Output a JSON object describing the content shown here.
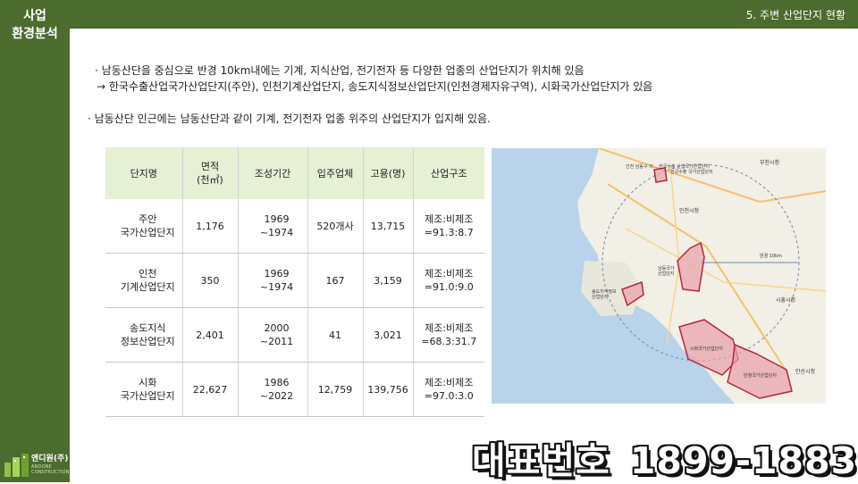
{
  "sidebar": {
    "title_line1": "사업",
    "title_line2": "환경분석"
  },
  "header": {
    "section": "5. 주변 산업단지 현황"
  },
  "bullets": {
    "line1": "· 남동산단을 중심으로 반경 10km내에는 기계, 지식산업, 전기전자 등 다양한 업종의 산업단지가 위치해 있음",
    "line2": "→ 한국수출산업국가산업단지(주안), 인천기계산업단지, 송도지식정보산업단지(인천경제자유구역), 시화국가산업단지가 있음",
    "line3": "· 남동산단 인근에는 남동산단과 같이 기계, 전기전자 업종 위주의 산업단지가 입지해 있음."
  },
  "table": {
    "headers": [
      "단지명",
      "면적\n(천㎡)",
      "조성기간",
      "입주업체",
      "고용(명)",
      "산업구조"
    ],
    "rows": [
      [
        "주안\n국가산업단지",
        "1,176",
        "1969\n~1974",
        "520개사",
        "13,715",
        "제조:비제조\n=91.3:8.7"
      ],
      [
        "인천\n기계산업단지",
        "350",
        "1969\n~1974",
        "167",
        "3,159",
        "제조:비제조\n=91.0:9.0"
      ],
      [
        "송도지식\n정보산업단지",
        "2,401",
        "2000\n~2011",
        "41",
        "3,021",
        "제조:비제조\n=68.3:31.7"
      ],
      [
        "시화\n국가산업단지",
        "22,627",
        "1986\n~2022",
        "12,759",
        "139,756",
        "제조:비제조\n=97.0:3.0"
      ]
    ]
  },
  "map": {
    "labels": {
      "top_left": "인천 남동구 이... 한국수출 산업국가산업단지",
      "top_mid": "한국수출 국가산업단지",
      "top_right": "부천시청",
      "incheon_city": "인천시청",
      "namdong": "남동국가\n산업단지",
      "radius": "반경 10km",
      "songdo": "송도지식정보\n산업단지",
      "siheung_city": "시흥시청",
      "sihwa": "시화국가산업단지",
      "banwol": "반월국가산업단지",
      "ansan": "안산시청"
    },
    "colors": {
      "land": "#f2efe6",
      "sea": "#b8d3ea",
      "zone": "#e8a0aa",
      "zone_border": "#b8263c"
    }
  },
  "footer": {
    "logo_name": "앤디원(주)",
    "logo_sub": "ANDONE CONSTRUCTION",
    "hotline_label": "대표번호",
    "hotline_number": "1899-1883"
  }
}
